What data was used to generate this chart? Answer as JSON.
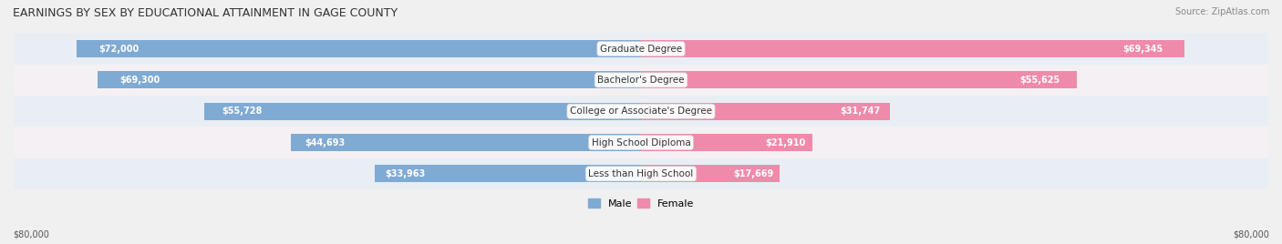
{
  "title": "EARNINGS BY SEX BY EDUCATIONAL ATTAINMENT IN GAGE COUNTY",
  "source": "Source: ZipAtlas.com",
  "categories": [
    "Less than High School",
    "High School Diploma",
    "College or Associate's Degree",
    "Bachelor's Degree",
    "Graduate Degree"
  ],
  "male_values": [
    33963,
    44693,
    55728,
    69300,
    72000
  ],
  "female_values": [
    17669,
    21910,
    31747,
    55625,
    69345
  ],
  "max_value": 80000,
  "male_color": "#7faad4",
  "female_color": "#f08aaa",
  "label_bg_color": "#ffffff",
  "row_bg_color_odd": "#e8e8e8",
  "row_bg_color_even": "#f5f5f5",
  "male_label_color": "#ffffff",
  "female_label_color": "#ffffff",
  "axis_label_left": "$80,000",
  "axis_label_right": "$80,000"
}
